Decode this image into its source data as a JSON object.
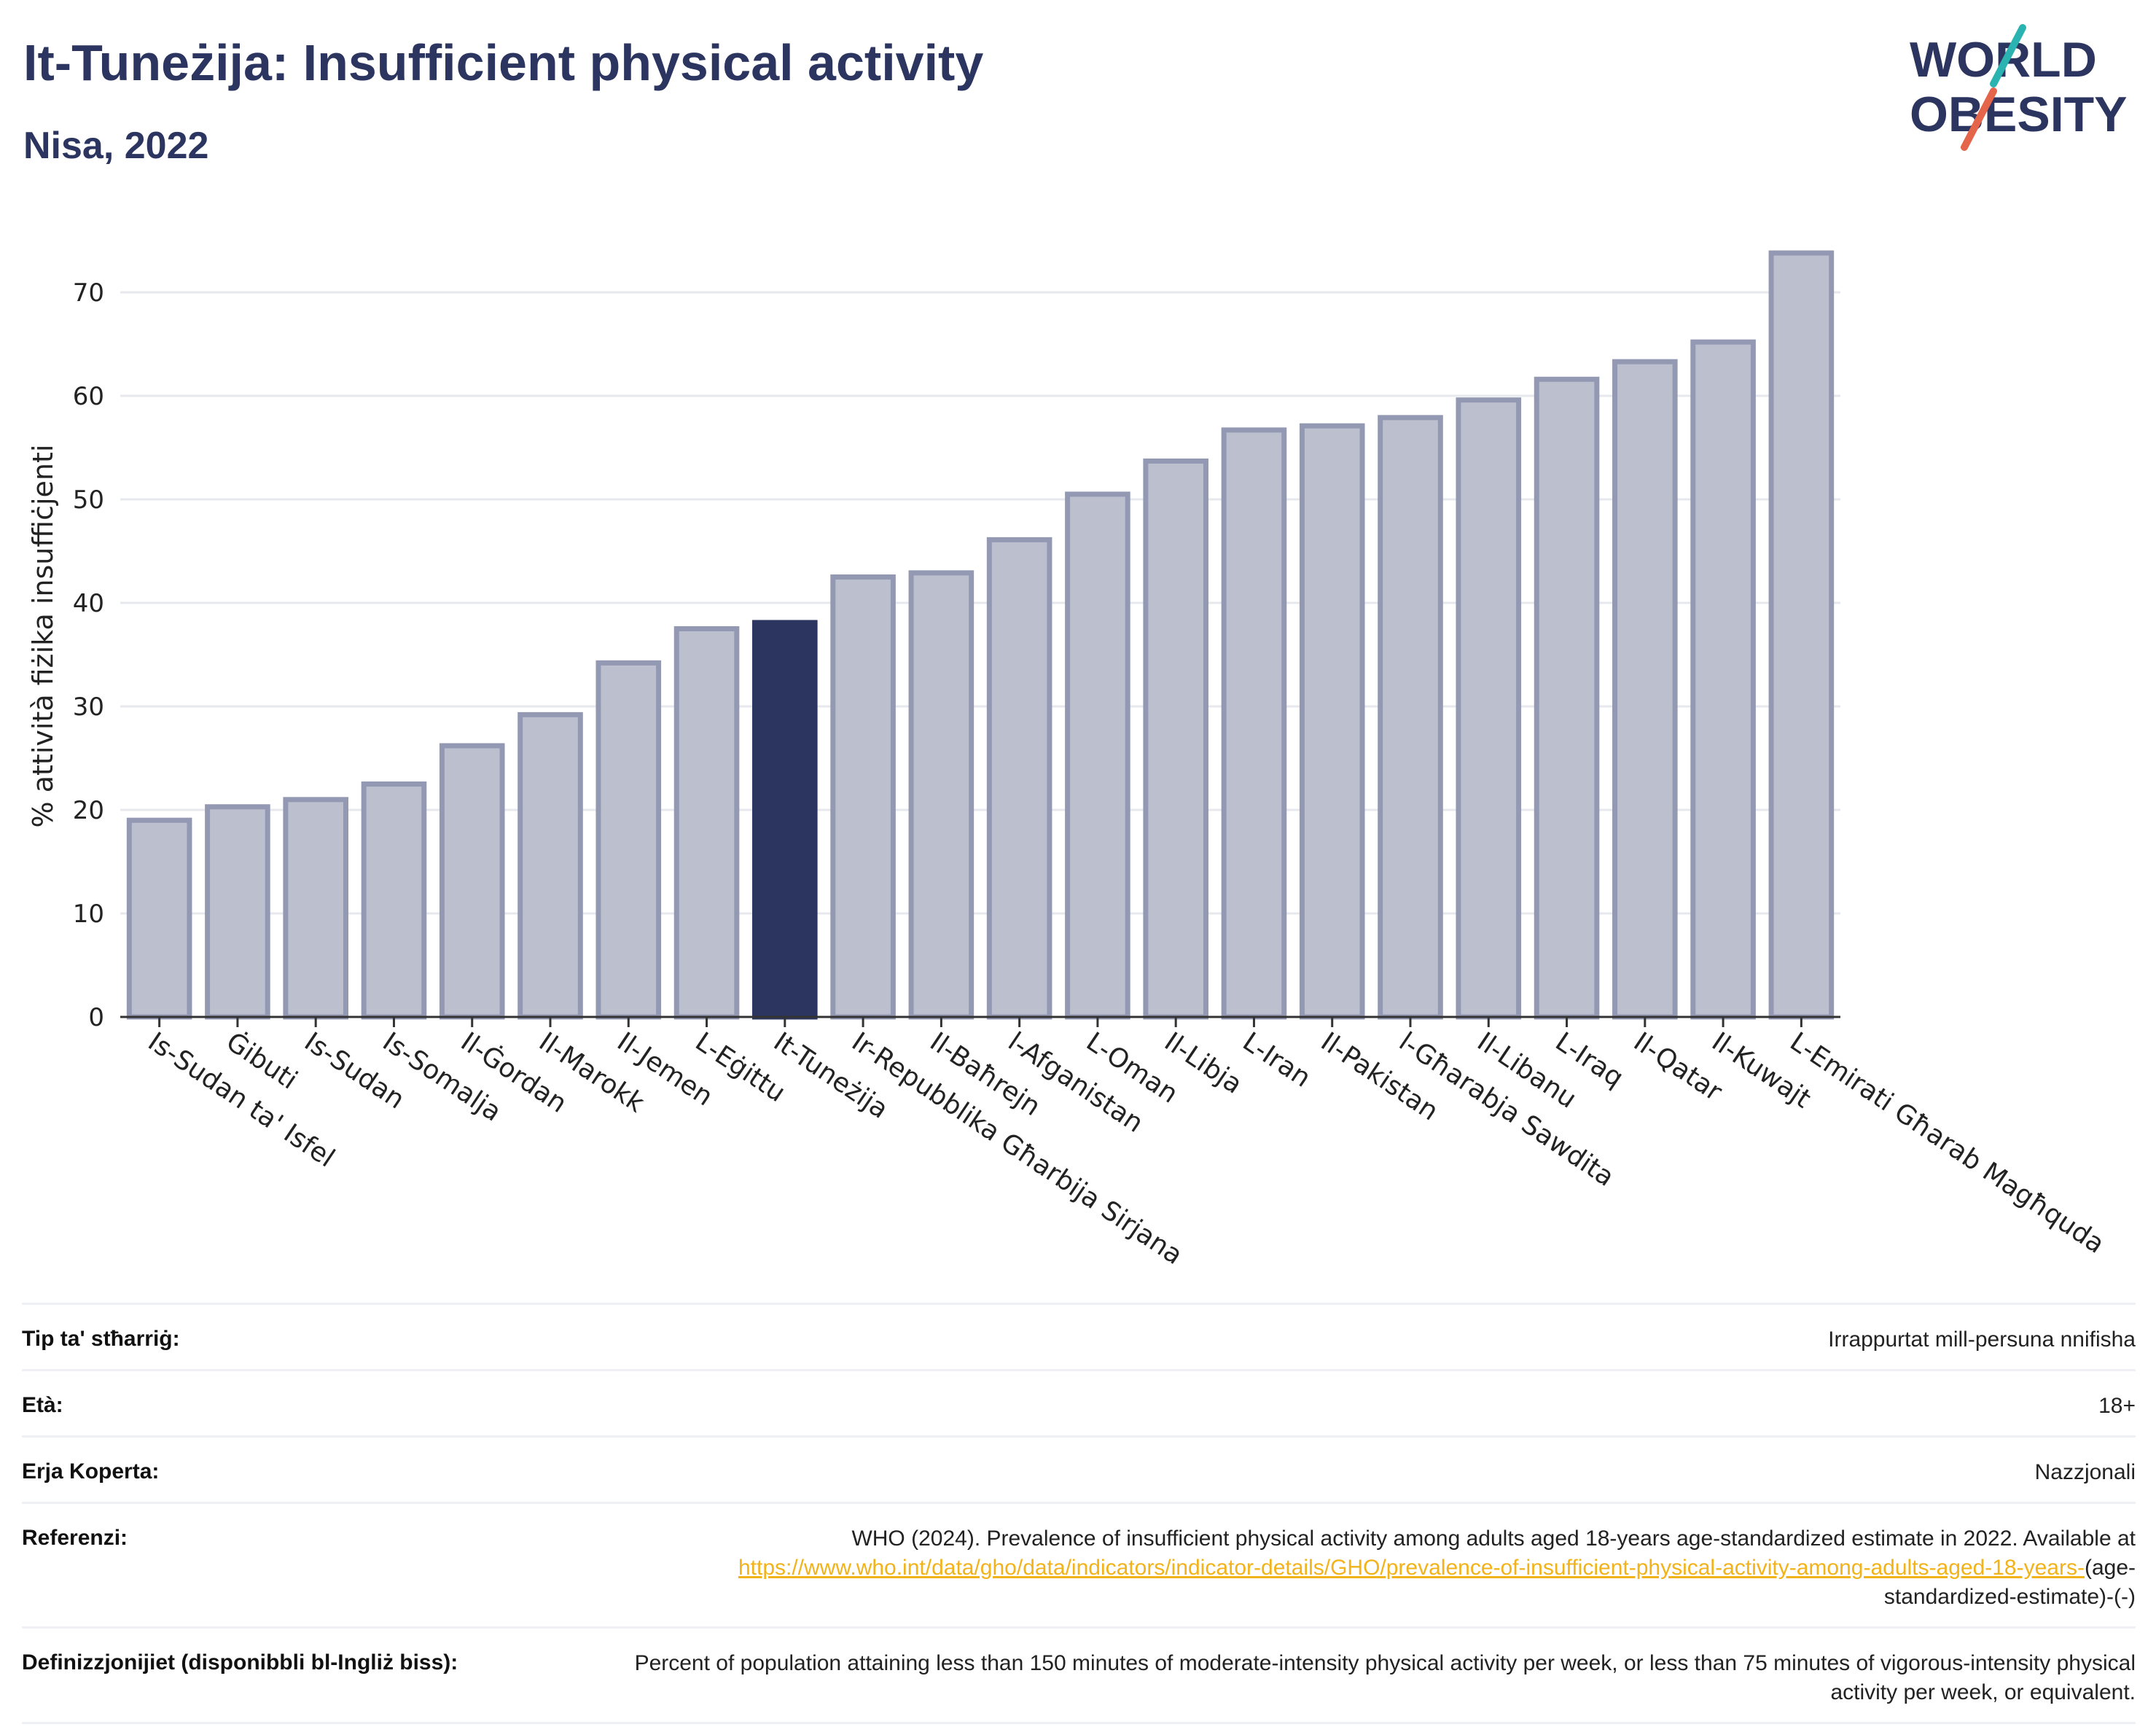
{
  "header": {
    "title": "It-Tuneżija: Insufficient physical activity",
    "subtitle": "Nisa, 2022"
  },
  "logo": {
    "line1": "WORLD",
    "line2": "OBESITY",
    "accent_teal": "#2bb3b1",
    "accent_red": "#e5654b",
    "text_color": "#2c3560"
  },
  "colors": {
    "highlight": "#2c3560",
    "bar_fill": "#bcc0ce",
    "bar_stroke": "#9499b3"
  },
  "chart_data": {
    "type": "bar",
    "ylabel": "% attività fiżika insuffiċjenti",
    "xlabel": "",
    "ylim": [
      0,
      75
    ],
    "yticks": [
      0,
      10,
      20,
      30,
      40,
      50,
      60,
      70
    ],
    "grid": true,
    "highlight_category": "It-Tuneżija",
    "categories": [
      "Is-Sudan ta' Isfel",
      "Ġibuti",
      "Is-Sudan",
      "Is-Somalja",
      "Il-Ġordan",
      "Il-Marokk",
      "Il-Jemen",
      "L-Eġittu",
      "It-Tuneżija",
      "Ir-Repubblika Għarbija Sirjana",
      "Il-Baħrejn",
      "l-Afganistan",
      "L-Oman",
      "Il-Libja",
      "L-Iran",
      "Il-Pakistan",
      "l-Għarabja Sawdita",
      "Il-Libanu",
      "L-Iraq",
      "Il-Qatar",
      "Il-Kuwajt",
      "L-Emirati Għarab Magħquda"
    ],
    "values": [
      19.0,
      20.3,
      21.0,
      22.5,
      26.2,
      29.2,
      34.2,
      37.5,
      38.1,
      42.5,
      42.9,
      46.1,
      50.5,
      53.7,
      56.7,
      57.1,
      57.9,
      59.6,
      61.6,
      63.3,
      65.2,
      73.8
    ]
  },
  "info_table": {
    "rows": [
      {
        "label": "Tip ta' stħarriġ:",
        "value": "Irrappurtat mill-persuna nnifisha"
      },
      {
        "label": "Età:",
        "value": "18+"
      },
      {
        "label": "Erja Koperta:",
        "value": "Nazzjonali"
      },
      {
        "label": "Referenzi:",
        "value": "WHO (2024). Prevalence of insufficient physical activity among adults aged 18-years age-standardized estimate in 2022. Available at",
        "link": "https://www.who.int/data/gho/data/indicators/indicator-details/GHO/prevalence-of-insufficient-physical-activity-among-adults-aged-18-years-",
        "suffix": "(age-standardized-estimate)-(-)"
      },
      {
        "label": "Definizzjonijiet (disponibbli bl-Ingliż biss):",
        "value": "Percent of population attaining less than 150 minutes of moderate-intensity physical activity per week, or less than 75 minutes of vigorous-intensity physical activity per week, or equivalent."
      }
    ]
  }
}
